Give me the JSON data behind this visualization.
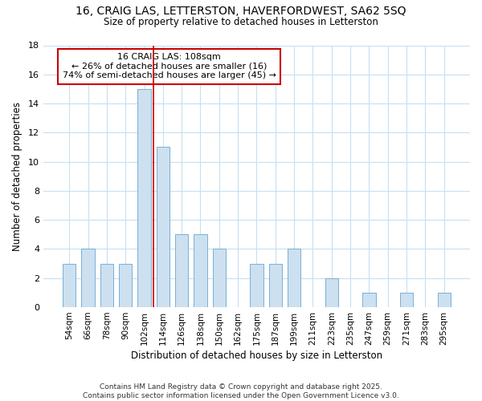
{
  "title_line1": "16, CRAIG LAS, LETTERSTON, HAVERFORDWEST, SA62 5SQ",
  "title_line2": "Size of property relative to detached houses in Letterston",
  "xlabel": "Distribution of detached houses by size in Letterston",
  "ylabel": "Number of detached properties",
  "categories": [
    "54sqm",
    "66sqm",
    "78sqm",
    "90sqm",
    "102sqm",
    "114sqm",
    "126sqm",
    "138sqm",
    "150sqm",
    "162sqm",
    "175sqm",
    "187sqm",
    "199sqm",
    "211sqm",
    "223sqm",
    "235sqm",
    "247sqm",
    "259sqm",
    "271sqm",
    "283sqm",
    "295sqm"
  ],
  "values": [
    3,
    4,
    3,
    3,
    15,
    11,
    5,
    5,
    4,
    0,
    3,
    3,
    4,
    0,
    2,
    0,
    1,
    0,
    1,
    0,
    1
  ],
  "bar_color": "#cce0f0",
  "bar_edge_color": "#7ab0d4",
  "ylim": [
    0,
    18
  ],
  "yticks": [
    0,
    2,
    4,
    6,
    8,
    10,
    12,
    14,
    16,
    18
  ],
  "annotation_title": "16 CRAIG LAS: 108sqm",
  "annotation_line1": "← 26% of detached houses are smaller (16)",
  "annotation_line2": "74% of semi-detached houses are larger (45) →",
  "annotation_box_color": "#ffffff",
  "annotation_box_edge": "#cc0000",
  "vline_color": "#cc0000",
  "vline_x_index": 4.5,
  "footer_line1": "Contains HM Land Registry data © Crown copyright and database right 2025.",
  "footer_line2": "Contains public sector information licensed under the Open Government Licence v3.0.",
  "fig_bg_color": "#ffffff",
  "plot_bg_color": "#ffffff",
  "grid_color": "#c8dff0"
}
